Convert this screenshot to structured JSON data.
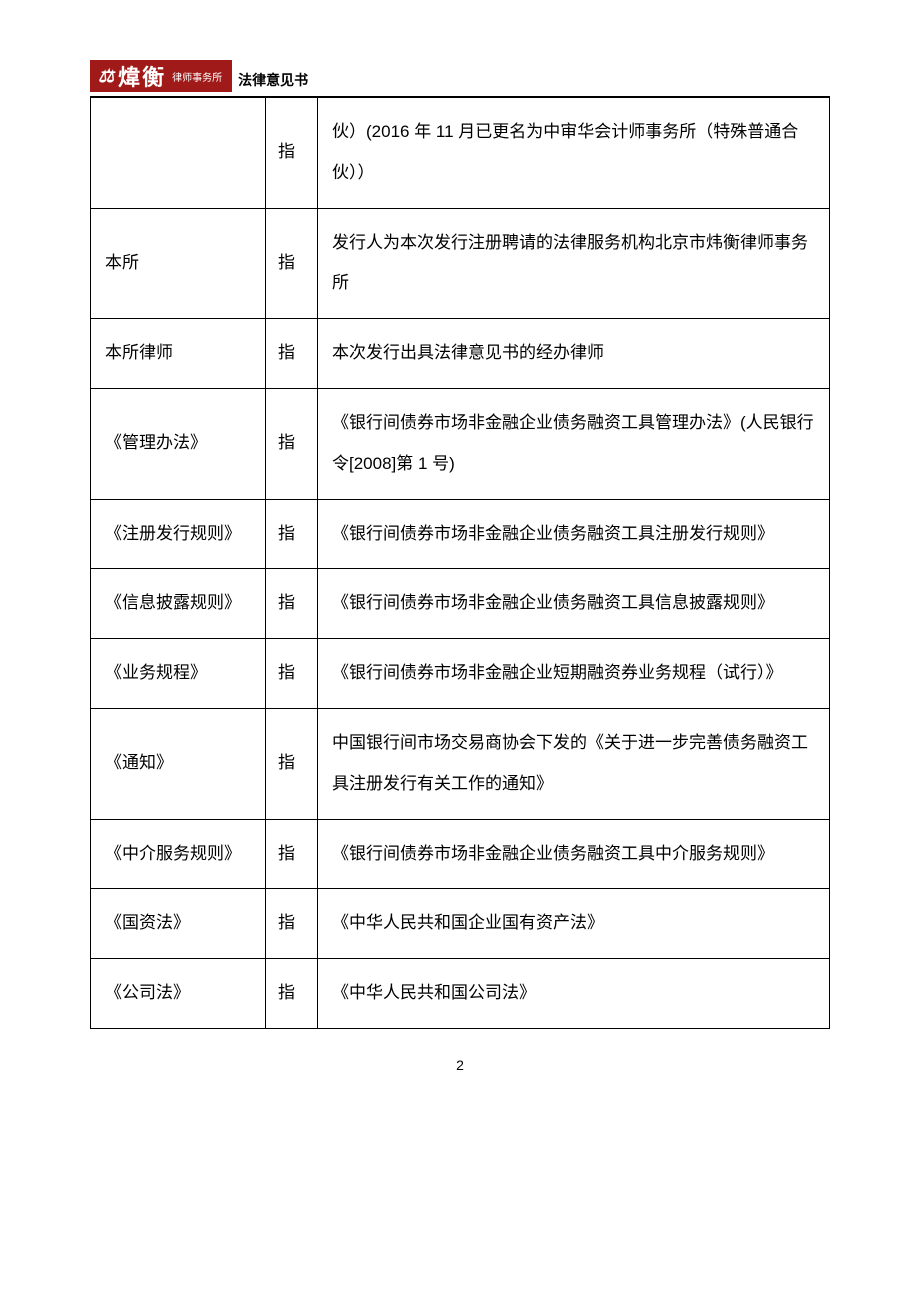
{
  "header": {
    "logo_icon": "⚖",
    "logo_main": "煒衡",
    "logo_sub": "律师事务所",
    "title": "法律意见书"
  },
  "table": {
    "col2_label": "指",
    "column_widths": [
      "175px",
      "52px",
      "auto"
    ],
    "border_color": "#000000",
    "font_size": 17,
    "line_height": 2.4,
    "rows": [
      {
        "term": "",
        "def": "伙）(2016 年 11 月已更名为中审华会计师事务所（特殊普通合伙））"
      },
      {
        "term": "本所",
        "def": "发行人为本次发行注册聘请的法律服务机构北京市炜衡律师事务所"
      },
      {
        "term": "本所律师",
        "def": "本次发行出具法律意见书的经办律师"
      },
      {
        "term": "《管理办法》",
        "def": "《银行间债券市场非金融企业债务融资工具管理办法》(人民银行令[2008]第 1 号)"
      },
      {
        "term": "《注册发行规则》",
        "def": "《银行间债券市场非金融企业债务融资工具注册发行规则》"
      },
      {
        "term": "《信息披露规则》",
        "def": "《银行间债券市场非金融企业债务融资工具信息披露规则》"
      },
      {
        "term": "《业务规程》",
        "def": "《银行间债券市场非金融企业短期融资券业务规程（试行）》"
      },
      {
        "term": "《通知》",
        "def": "中国银行间市场交易商协会下发的《关于进一步完善债务融资工具注册发行有关工作的通知》"
      },
      {
        "term": "《中介服务规则》",
        "def": "《银行间债券市场非金融企业债务融资工具中介服务规则》"
      },
      {
        "term": "《国资法》",
        "def": "《中华人民共和国企业国有资产法》"
      },
      {
        "term": "《公司法》",
        "def": "《中华人民共和国公司法》"
      }
    ]
  },
  "page_number": "2",
  "colors": {
    "logo_bg": "#a01a1a",
    "logo_text": "#ffffff",
    "text": "#000000",
    "background": "#ffffff"
  }
}
